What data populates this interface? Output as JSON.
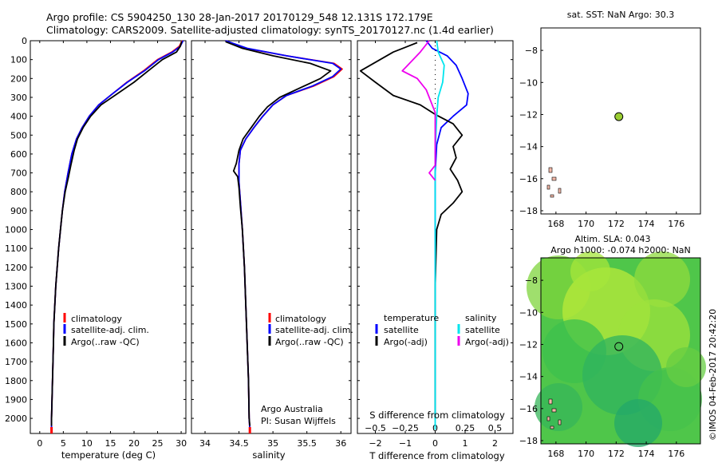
{
  "header": {
    "line1": "Argo profile: CS 5904250_130 28-Jan-2017 20170129_548 12.131S 172.179E",
    "line2": "Climatology: CARS2009. Satellite-adjusted climatology: synTS_20170127.nc (1.4d earlier)"
  },
  "credit": "©IMOS 04-Feb-2017 20:42:20",
  "colors": {
    "climatology": "#ff0000",
    "satellite": "#0000ff",
    "argo": "#000000",
    "cyan": "#00e5ee",
    "magenta": "#ee00ee",
    "sst_bg": "#ffffff",
    "sla_green": "#4fc64a",
    "marker": "#9acd32",
    "land": "#f4b9a9"
  },
  "chart_data": [
    {
      "id": "temperature",
      "type": "line",
      "xlabel": "temperature (deg C)",
      "xlim": [
        -2,
        31
      ],
      "xticks": [
        0,
        5,
        10,
        15,
        20,
        25,
        30
      ],
      "ylim": [
        2080,
        0
      ],
      "yticks": [
        0,
        100,
        200,
        300,
        400,
        500,
        600,
        700,
        800,
        900,
        1000,
        1100,
        1200,
        1300,
        1400,
        1500,
        1600,
        1700,
        1800,
        1900,
        2000
      ],
      "legend": [
        "climatology",
        "satellite-adj. clim.",
        "Argo(..raw -QC)"
      ],
      "legend_position": "lower-middle",
      "series": [
        {
          "name": "climatology",
          "color": "red",
          "points": [
            [
              30.2,
              0
            ],
            [
              29.6,
              30
            ],
            [
              28,
              60
            ],
            [
              25,
              100
            ],
            [
              22,
              160
            ],
            [
              18.5,
              220
            ],
            [
              15.5,
              280
            ],
            [
              12.5,
              340
            ],
            [
              10.5,
              400
            ],
            [
              9,
              460
            ],
            [
              7.8,
              520
            ],
            [
              6.8,
              600
            ],
            [
              6,
              700
            ],
            [
              5.3,
              800
            ],
            [
              4.8,
              900
            ],
            [
              4.4,
              1000
            ],
            [
              4,
              1100
            ],
            [
              3.7,
              1200
            ],
            [
              3.4,
              1300
            ],
            [
              3.2,
              1400
            ],
            [
              3,
              1500
            ],
            [
              2.9,
              1600
            ],
            [
              2.8,
              1700
            ],
            [
              2.7,
              1800
            ],
            [
              2.6,
              1900
            ],
            [
              2.5,
              2000
            ],
            [
              2.5,
              2060
            ]
          ]
        },
        {
          "name": "satellite-adj. clim.",
          "color": "blue",
          "points": [
            [
              30.4,
              0
            ],
            [
              29.8,
              30
            ],
            [
              28.2,
              60
            ],
            [
              25.2,
              100
            ],
            [
              22.2,
              160
            ],
            [
              18.6,
              220
            ],
            [
              15.5,
              280
            ],
            [
              12.5,
              340
            ],
            [
              10.5,
              400
            ],
            [
              9,
              460
            ],
            [
              7.8,
              520
            ],
            [
              6.8,
              600
            ],
            [
              6,
              700
            ],
            [
              5.3,
              800
            ],
            [
              4.8,
              900
            ],
            [
              4.4,
              1000
            ],
            [
              4,
              1100
            ],
            [
              3.7,
              1200
            ],
            [
              3.4,
              1300
            ],
            [
              3.2,
              1400
            ],
            [
              3,
              1500
            ],
            [
              2.9,
              1600
            ],
            [
              2.8,
              1700
            ],
            [
              2.7,
              1800
            ],
            [
              2.6,
              1900
            ],
            [
              2.5,
              2000
            ],
            [
              2.5,
              2060
            ]
          ]
        },
        {
          "name": "Argo(..raw -QC)",
          "color": "black",
          "points": [
            [
              30.1,
              5
            ],
            [
              29.8,
              30
            ],
            [
              29,
              60
            ],
            [
              26,
              100
            ],
            [
              23,
              160
            ],
            [
              20,
              220
            ],
            [
              16.5,
              280
            ],
            [
              13,
              340
            ],
            [
              10.8,
              400
            ],
            [
              9.2,
              460
            ],
            [
              8,
              520
            ],
            [
              7.3,
              580
            ],
            [
              6.6,
              660
            ],
            [
              6.1,
              720
            ],
            [
              5.4,
              800
            ],
            [
              4.8,
              900
            ],
            [
              4.4,
              1000
            ],
            [
              4,
              1100
            ],
            [
              3.7,
              1200
            ],
            [
              3.4,
              1300
            ],
            [
              3.2,
              1400
            ],
            [
              3,
              1500
            ],
            [
              2.9,
              1600
            ],
            [
              2.8,
              1700
            ],
            [
              2.7,
              1800
            ],
            [
              2.6,
              1900
            ],
            [
              2.5,
              2000
            ],
            [
              2.5,
              2040
            ]
          ]
        }
      ]
    },
    {
      "id": "salinity",
      "type": "line",
      "xlabel": "salinity",
      "xlim": [
        33.8,
        36.15
      ],
      "xticks": [
        34,
        34.5,
        35,
        35.5,
        36
      ],
      "ylim": [
        2080,
        0
      ],
      "legend": [
        "climatology",
        "satellite-adj. clim.",
        "Argo(..raw -QC)"
      ],
      "legend_position": "lower-middle",
      "annotations": [
        "Argo Australia",
        "PI: Susan Wijffels"
      ],
      "series": [
        {
          "name": "climatology",
          "color": "red",
          "points": [
            [
              34.3,
              0
            ],
            [
              34.6,
              40
            ],
            [
              35.2,
              80
            ],
            [
              35.9,
              120
            ],
            [
              36.02,
              150
            ],
            [
              35.9,
              190
            ],
            [
              35.6,
              240
            ],
            [
              35.2,
              290
            ],
            [
              35,
              340
            ],
            [
              34.85,
              400
            ],
            [
              34.72,
              460
            ],
            [
              34.6,
              520
            ],
            [
              34.52,
              580
            ],
            [
              34.5,
              650
            ],
            [
              34.5,
              750
            ],
            [
              34.52,
              850
            ],
            [
              34.55,
              1000
            ],
            [
              34.58,
              1200
            ],
            [
              34.6,
              1400
            ],
            [
              34.62,
              1600
            ],
            [
              34.64,
              1800
            ],
            [
              34.65,
              2000
            ],
            [
              34.66,
              2060
            ]
          ]
        },
        {
          "name": "satellite-adj. clim.",
          "color": "blue",
          "points": [
            [
              34.3,
              0
            ],
            [
              34.62,
              40
            ],
            [
              35.2,
              80
            ],
            [
              35.88,
              120
            ],
            [
              36,
              150
            ],
            [
              35.88,
              190
            ],
            [
              35.58,
              240
            ],
            [
              35.2,
              290
            ],
            [
              35,
              340
            ],
            [
              34.85,
              400
            ],
            [
              34.72,
              460
            ],
            [
              34.6,
              520
            ],
            [
              34.52,
              580
            ],
            [
              34.5,
              650
            ],
            [
              34.5,
              750
            ],
            [
              34.52,
              850
            ],
            [
              34.55,
              1000
            ],
            [
              34.58,
              1200
            ],
            [
              34.6,
              1400
            ],
            [
              34.62,
              1600
            ],
            [
              34.64,
              1800
            ],
            [
              34.65,
              2000
            ],
            [
              34.66,
              2060
            ]
          ]
        },
        {
          "name": "Argo(..raw -QC)",
          "color": "black",
          "points": [
            [
              34.3,
              5
            ],
            [
              34.55,
              40
            ],
            [
              35,
              80
            ],
            [
              35.55,
              120
            ],
            [
              35.85,
              160
            ],
            [
              35.7,
              200
            ],
            [
              35.4,
              250
            ],
            [
              35.1,
              300
            ],
            [
              34.92,
              350
            ],
            [
              34.8,
              400
            ],
            [
              34.68,
              460
            ],
            [
              34.56,
              520
            ],
            [
              34.5,
              580
            ],
            [
              34.46,
              650
            ],
            [
              34.42,
              690
            ],
            [
              34.48,
              720
            ],
            [
              34.5,
              780
            ],
            [
              34.52,
              880
            ],
            [
              34.55,
              1000
            ],
            [
              34.58,
              1200
            ],
            [
              34.6,
              1400
            ],
            [
              34.62,
              1600
            ],
            [
              34.64,
              1800
            ],
            [
              34.65,
              2000
            ],
            [
              34.66,
              2040
            ]
          ]
        }
      ]
    },
    {
      "id": "difference",
      "type": "line",
      "xlabel": "T difference from climatology",
      "xlabel_top": "S difference from climatology",
      "xlim": [
        -2.6,
        2.6
      ],
      "xticks": [
        -2,
        -1,
        0,
        1,
        2
      ],
      "xticks_top": [
        -0.5,
        -0.25,
        0,
        0.25,
        0.5
      ],
      "ylim": [
        2080,
        0
      ],
      "legend_temperature": {
        "title": "temperature",
        "items": [
          "satellite",
          "Argo(-adj)"
        ]
      },
      "legend_salinity": {
        "title": "salinity",
        "items": [
          "satellite",
          "Argo(-adj)"
        ]
      },
      "series": [
        {
          "name": "temperature satellite",
          "color": "blue",
          "points": [
            [
              -0.3,
              0
            ],
            [
              -0.1,
              40
            ],
            [
              0.4,
              80
            ],
            [
              0.7,
              130
            ],
            [
              0.9,
              200
            ],
            [
              1.1,
              280
            ],
            [
              1.05,
              340
            ],
            [
              0.6,
              400
            ],
            [
              0.2,
              460
            ],
            [
              0.05,
              550
            ],
            [
              0,
              700
            ],
            [
              0,
              1000
            ],
            [
              0,
              1500
            ],
            [
              0,
              2000
            ]
          ]
        },
        {
          "name": "temperature Argo(-adj)",
          "color": "black",
          "points": [
            [
              -0.6,
              10
            ],
            [
              -1.4,
              60
            ],
            [
              -2.5,
              160
            ],
            [
              -2,
              220
            ],
            [
              -1.4,
              290
            ],
            [
              -0.5,
              340
            ],
            [
              0,
              390
            ],
            [
              0.6,
              440
            ],
            [
              0.9,
              500
            ],
            [
              0.6,
              560
            ],
            [
              0.7,
              620
            ],
            [
              0.5,
              680
            ],
            [
              0.75,
              740
            ],
            [
              0.9,
              800
            ],
            [
              0.6,
              860
            ],
            [
              0.2,
              920
            ],
            [
              0.05,
              1000
            ],
            [
              0,
              1300
            ],
            [
              0,
              2000
            ]
          ]
        },
        {
          "name": "salinity satellite",
          "color": "cyan",
          "points": [
            [
              0.05,
              0
            ],
            [
              0.1,
              60
            ],
            [
              0.3,
              130
            ],
            [
              0.25,
              220
            ],
            [
              0.1,
              300
            ],
            [
              0.05,
              400
            ],
            [
              0,
              600
            ],
            [
              0,
              1000
            ],
            [
              0,
              1500
            ],
            [
              0,
              2060
            ]
          ]
        },
        {
          "name": "salinity Argo(-adj)",
          "color": "magenta",
          "points": [
            [
              -0.2,
              0
            ],
            [
              -0.5,
              60
            ],
            [
              -1.1,
              160
            ],
            [
              -0.6,
              200
            ],
            [
              -0.3,
              260
            ],
            [
              -0.15,
              320
            ],
            [
              0,
              380
            ],
            [
              0,
              660
            ],
            [
              -0.2,
              700
            ],
            [
              0,
              740
            ]
          ]
        }
      ]
    },
    {
      "id": "sst_map",
      "type": "scatter",
      "title": "sat. SST: NaN Argo: 30.3",
      "xlim": [
        167,
        177.6
      ],
      "xticks": [
        168,
        170,
        172,
        174,
        176
      ],
      "ylim": [
        -18.2,
        -6.6
      ],
      "yticks": [
        -8,
        -10,
        -12,
        -14,
        -16,
        -18
      ],
      "points": [
        {
          "lon": 172.179,
          "lat": -12.131
        }
      ]
    },
    {
      "id": "sla_map",
      "type": "heatmap",
      "title_line1": "Altim. SLA: 0.043",
      "title_line2": "Argo h1000: -0.074 h2000: NaN",
      "xlim": [
        167,
        177.6
      ],
      "xticks": [
        168,
        170,
        172,
        174,
        176
      ],
      "ylim": [
        -18.2,
        -6.6
      ],
      "yticks": [
        -8,
        -10,
        -12,
        -14,
        -16,
        -18
      ],
      "points": [
        {
          "lon": 172.179,
          "lat": -12.131
        }
      ]
    }
  ]
}
